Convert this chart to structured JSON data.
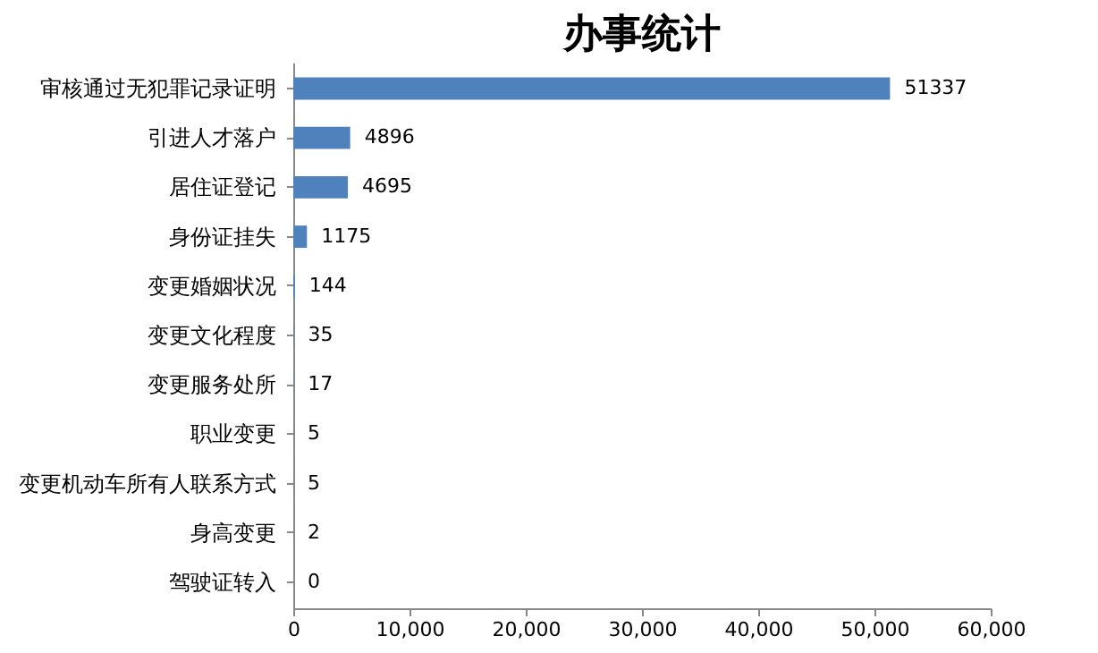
{
  "chart_data": {
    "type": "bar",
    "orientation": "horizontal",
    "title": "办事统计",
    "categories": [
      "审核通过无犯罪记录证明",
      "引进人才落户",
      "居住证登记",
      "身份证挂失",
      "变更婚姻状况",
      "变更文化程度",
      "变更服务处所",
      "职业变更",
      "变更机动车所有人联系方式",
      "身高变更",
      "驾驶证转入"
    ],
    "values": [
      51337,
      4896,
      4695,
      1175,
      144,
      35,
      17,
      5,
      5,
      2,
      0
    ],
    "color": "#4f81bd",
    "xlim": [
      0,
      60000
    ],
    "xticks": [
      0,
      {
        "value": 10000,
        "label": "10,000"
      },
      {
        "value": 20000,
        "label": "20,000"
      },
      {
        "value": 30000,
        "label": "30,000"
      },
      {
        "value": 40000,
        "label": "40,000"
      },
      {
        "value": 50000,
        "label": "50,000"
      },
      {
        "value": 60000,
        "label": "60,000"
      }
    ],
    "data_labels": true,
    "grid": false
  }
}
